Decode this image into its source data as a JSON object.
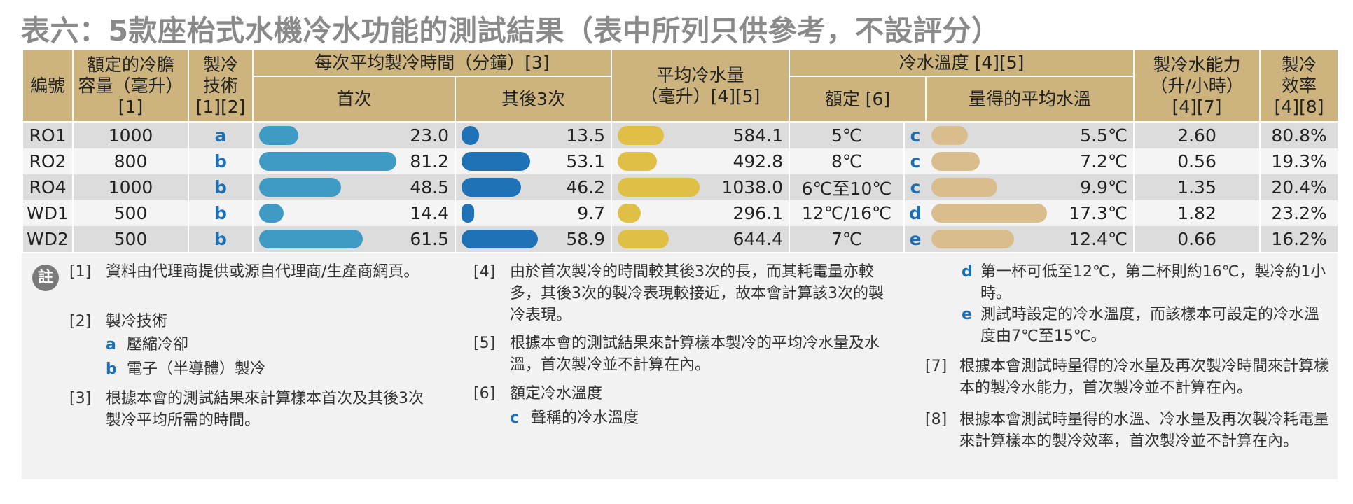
{
  "title": "表六：5款座枱式水機冷水功能的測試結果（表中所列只供參考，不設評分）",
  "header": {
    "id": "編號",
    "capacity": [
      "額定的冷膽",
      "容量（毫升）",
      "[1]"
    ],
    "tech": [
      "製冷",
      "技術",
      "[1][2]"
    ],
    "time": "每次平均製冷時間（分鐘）[3]",
    "first": "首次",
    "after": "其後3次",
    "water": [
      "平均冷水量",
      "（毫升）[4][5]"
    ],
    "temp": "冷水溫度 [4][5]",
    "rated_temp": "額定 [6]",
    "measured_temp": "量得的平均水溫",
    "rate": [
      "製冷水能力",
      "（升/小時）",
      "[4][7]"
    ],
    "efficiency": [
      "製冷",
      "效率",
      "[4][8]"
    ]
  },
  "rows": [
    {
      "id": "RO1",
      "capacity": 1000,
      "tech": "a",
      "first": {
        "value": 23,
        "label": "23.0"
      },
      "after": 13.5,
      "water": 584.1,
      "rated_temp": "5℃",
      "note": "c",
      "temp": {
        "value": 5.5,
        "label": "5.5℃"
      },
      "rate": "2.60",
      "efficiency": "80.8%"
    },
    {
      "id": "RO2",
      "capacity": 800,
      "tech": "b",
      "first": 81.2,
      "after": 53.1,
      "water": 492.8,
      "rated_temp": "8℃",
      "note": "c",
      "temp": {
        "value": 7.2,
        "label": "7.2℃"
      },
      "rate": "0.56",
      "efficiency": "19.3%"
    },
    {
      "id": "RO4",
      "capacity": 1000,
      "tech": "b",
      "first": 48.5,
      "after": 46.2,
      "water": {
        "value": 1038,
        "label": "1038.0"
      },
      "rated_temp": "6℃至10℃",
      "note": "c",
      "temp": {
        "value": 9.9,
        "label": "9.9℃"
      },
      "rate": "1.35",
      "efficiency": "20.4%"
    },
    {
      "id": "WD1",
      "capacity": 500,
      "tech": "b",
      "first": 14.4,
      "after": 9.7,
      "water": 296.1,
      "rated_temp": "12℃/16℃",
      "note": "d",
      "temp": {
        "value": 17.3,
        "label": "17.3℃"
      },
      "rate": "1.82",
      "efficiency": "23.2%"
    },
    {
      "id": "WD2",
      "capacity": 500,
      "tech": "b",
      "first": 61.5,
      "after": 58.9,
      "water": 644.4,
      "rated_temp": "7℃",
      "note": "e",
      "temp": {
        "value": 12.4,
        "label": "12.4℃"
      },
      "rate": "0.66",
      "efficiency": "16.2%"
    }
  ],
  "bar_colors": {
    "first": "#3f9bc4",
    "after": "#1f72b6",
    "water": "#dfbf45",
    "temp": "#d9bd8d"
  },
  "notes": {
    "icon": "註",
    "items": [
      {
        "marker": "[1]",
        "text": "資料由代理商提供或源自代理商/生產商網頁。"
      },
      {
        "marker": "[2]",
        "text": "製冷技術",
        "sub": [
          {
            "marker": "a",
            "text": "壓縮冷卻"
          },
          {
            "marker": "b",
            "text": "電子（半導體）製冷"
          }
        ]
      },
      {
        "marker": "[3]",
        "text": "根據本會的測試結果來計算樣本首次及其後3次製冷平均所需的時間。"
      },
      {
        "marker": "[4]",
        "text": "由於首次製冷的時間較其後3次的長，而其耗電量亦較多，其後3次的製冷表現較接近，故本會計算該3次的製冷表現。"
      },
      {
        "marker": "[5]",
        "text": "根據本會的測試結果來計算樣本製冷的平均冷水量及水溫，首次製冷並不計算在內。"
      },
      {
        "marker": "[6]",
        "text": "額定冷水溫度",
        "sub": [
          {
            "marker": "c",
            "text": "聲稱的冷水溫度"
          },
          {
            "marker": "d",
            "text": "第一杯可低至12℃，第二杯則約16℃，製冷約1小時。"
          },
          {
            "marker": "e",
            "text": "測試時設定的冷水溫度，而該樣本可設定的冷水溫度由7℃至15℃。"
          }
        ]
      },
      {
        "marker": "[7]",
        "text": "根據本會測試時量得的冷水量及再次製冷時間來計算樣本的製冷水能力，首次製冷並不計算在內。"
      },
      {
        "marker": "[8]",
        "text": "根據本會測試時量得的水溫、冷水量及再次製冷耗電量來計算樣本的製冷效率，首次製冷並不計算在內。"
      }
    ]
  }
}
